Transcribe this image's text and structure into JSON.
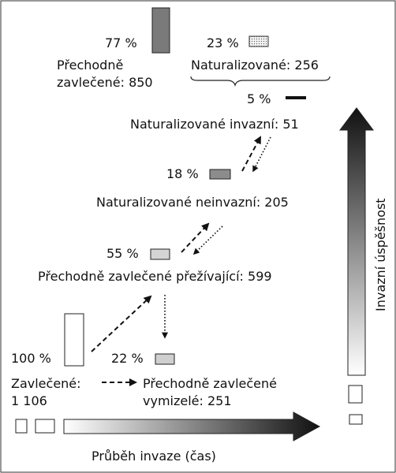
{
  "percentages": {
    "transient": "77 %",
    "naturalized": "23 %",
    "invasive": "5 %",
    "noninvasive": "18 %",
    "surviving": "55 %",
    "introduced": "100 %",
    "extinct": "22 %"
  },
  "categories": {
    "transient_line1": "Přechodně",
    "transient_line2": "zavlečené: 850",
    "naturalized": "Naturalizované: 256",
    "invasive": "Naturalizované invazní: 51",
    "noninvasive": "Naturalizované neinvazní: 205",
    "surviving": "Přechodně zavlečené přežívající: 599",
    "introduced_line1": "Zavlečené:",
    "introduced_line2": "1 106",
    "extinct_line1": "Přechodně zavlečené",
    "extinct_line2": "vymizelé: 251"
  },
  "axes": {
    "time": "Průběh invaze (čas)",
    "success": "Invazní úspěšnost"
  },
  "colors": {
    "transient_bar": "#7a7a7a",
    "noninvasive_bar": "#8c8c8c",
    "surviving_bar": "#d4d4d4",
    "extinct_bar": "#cfcfcf",
    "introduced_bar": "#ffffff",
    "invasive_bar": "#111111"
  }
}
